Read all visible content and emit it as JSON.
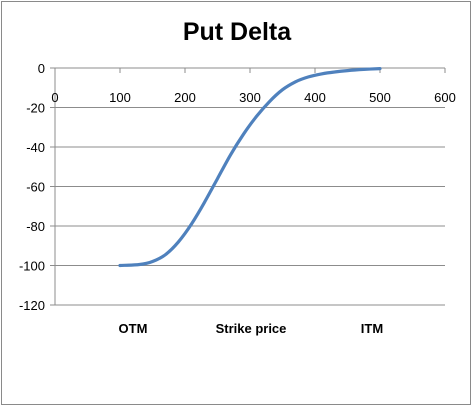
{
  "chart_data": {
    "type": "line",
    "title": "Put Delta",
    "xlabel": "",
    "ylabel": "",
    "xlim": [
      0,
      600
    ],
    "ylim": [
      -120,
      0
    ],
    "x_ticks": [
      "0",
      "100",
      "200",
      "300",
      "400",
      "500",
      "600"
    ],
    "y_ticks": [
      "0",
      "-20",
      "-40",
      "-60",
      "-80",
      "-100",
      "-120"
    ],
    "category_labels": [
      "OTM",
      "Strike price",
      "ITM"
    ],
    "grid": "horizontal",
    "series": [
      {
        "color": "#4f81bd",
        "x": [
          100,
          130,
          150,
          170,
          190,
          210,
          230,
          250,
          270,
          290,
          310,
          330,
          350,
          370,
          390,
          410,
          430,
          450,
          475,
          500
        ],
        "y": [
          -100,
          -99.5,
          -98,
          -94.5,
          -88,
          -79,
          -68,
          -56,
          -44,
          -33.5,
          -24.5,
          -17,
          -11,
          -7,
          -4.5,
          -3,
          -2,
          -1.3,
          -0.7,
          -0.3
        ]
      }
    ]
  }
}
